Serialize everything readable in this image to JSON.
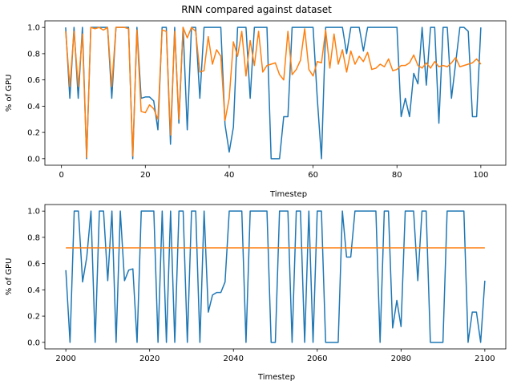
{
  "chart_data": [
    {
      "type": "line",
      "title": "RNN compared against dataset",
      "xlabel": "Timestep",
      "ylabel": "% of GPU",
      "xlim": [
        -3.95,
        105.95
      ],
      "ylim": [
        -0.05,
        1.05
      ],
      "xticks": [
        0,
        20,
        40,
        60,
        80,
        100
      ],
      "yticks": [
        0.0,
        0.2,
        0.4,
        0.6,
        0.8,
        1.0
      ],
      "grid": false,
      "legend": "none",
      "x": [
        1,
        2,
        3,
        4,
        5,
        6,
        7,
        8,
        9,
        10,
        11,
        12,
        13,
        14,
        15,
        16,
        17,
        18,
        19,
        20,
        21,
        22,
        23,
        24,
        25,
        26,
        27,
        28,
        29,
        30,
        31,
        32,
        33,
        34,
        35,
        36,
        37,
        38,
        39,
        40,
        41,
        42,
        43,
        44,
        45,
        46,
        47,
        48,
        49,
        50,
        51,
        52,
        53,
        54,
        55,
        56,
        57,
        58,
        59,
        60,
        61,
        62,
        63,
        64,
        65,
        66,
        67,
        68,
        69,
        70,
        71,
        72,
        73,
        74,
        75,
        76,
        77,
        78,
        79,
        80,
        81,
        82,
        83,
        84,
        85,
        86,
        87,
        88,
        89,
        90,
        91,
        92,
        93,
        94,
        95,
        96,
        97,
        98,
        99,
        100
      ],
      "series": [
        {
          "color": "#1f77b4",
          "values": [
            1.0,
            0.46,
            1.0,
            0.46,
            1.0,
            0.0,
            1.0,
            1.0,
            1.0,
            1.0,
            1.0,
            0.46,
            1.0,
            1.0,
            1.0,
            1.0,
            0.0,
            1.0,
            0.46,
            0.47,
            0.47,
            0.44,
            0.22,
            1.0,
            1.0,
            0.11,
            1.0,
            0.27,
            1.0,
            0.22,
            1.0,
            1.0,
            0.46,
            1.0,
            1.0,
            1.0,
            1.0,
            1.0,
            0.26,
            0.05,
            0.24,
            1.0,
            1.0,
            1.0,
            0.46,
            1.0,
            1.0,
            1.0,
            1.0,
            0.0,
            0.0,
            0.0,
            0.32,
            0.32,
            1.0,
            1.0,
            1.0,
            1.0,
            1.0,
            1.0,
            0.46,
            0.0,
            1.0,
            1.0,
            1.0,
            1.0,
            1.0,
            0.8,
            1.0,
            1.0,
            1.0,
            0.82,
            1.0,
            1.0,
            1.0,
            1.0,
            1.0,
            1.0,
            1.0,
            1.0,
            0.32,
            0.46,
            0.32,
            0.65,
            0.57,
            1.0,
            0.56,
            1.0,
            1.0,
            0.27,
            1.0,
            1.0,
            0.46,
            0.73,
            1.0,
            1.0,
            0.97,
            0.32,
            0.32,
            1.0
          ]
        },
        {
          "color": "#ff7f0e",
          "values": [
            0.97,
            0.55,
            0.97,
            0.55,
            0.95,
            0.01,
            1.0,
            0.99,
            1.0,
            0.98,
            1.0,
            0.55,
            1.0,
            1.0,
            1.0,
            0.99,
            0.02,
            0.98,
            0.36,
            0.35,
            0.41,
            0.38,
            0.3,
            0.98,
            0.97,
            0.18,
            0.97,
            0.3,
            1.0,
            0.92,
            1.0,
            0.97,
            0.66,
            0.67,
            0.93,
            0.72,
            0.83,
            0.78,
            0.29,
            0.46,
            0.89,
            0.78,
            0.97,
            0.63,
            0.9,
            0.71,
            0.97,
            0.66,
            0.71,
            0.72,
            0.73,
            0.64,
            0.6,
            0.97,
            0.64,
            0.68,
            0.75,
            0.99,
            0.68,
            0.63,
            0.74,
            0.73,
            0.98,
            0.69,
            0.95,
            0.72,
            0.83,
            0.66,
            0.82,
            0.72,
            0.78,
            0.74,
            0.81,
            0.68,
            0.69,
            0.72,
            0.7,
            0.76,
            0.67,
            0.68,
            0.71,
            0.71,
            0.73,
            0.79,
            0.71,
            0.69,
            0.73,
            0.69,
            0.74,
            0.7,
            0.71,
            0.7,
            0.73,
            0.77,
            0.7,
            0.71,
            0.72,
            0.73,
            0.76,
            0.72
          ]
        }
      ]
    },
    {
      "type": "line",
      "title": "",
      "xlabel": "Timestep",
      "ylabel": "% of GPU",
      "xlim": [
        1995.0,
        2105.0
      ],
      "ylim": [
        -0.05,
        1.05
      ],
      "xticks": [
        2000,
        2020,
        2040,
        2060,
        2080,
        2100
      ],
      "yticks": [
        0.0,
        0.2,
        0.4,
        0.6,
        0.8,
        1.0
      ],
      "grid": false,
      "legend": "none",
      "x": [
        2000,
        2001,
        2002,
        2003,
        2004,
        2005,
        2006,
        2007,
        2008,
        2009,
        2010,
        2011,
        2012,
        2013,
        2014,
        2015,
        2016,
        2017,
        2018,
        2019,
        2020,
        2021,
        2022,
        2023,
        2024,
        2025,
        2026,
        2027,
        2028,
        2029,
        2030,
        2031,
        2032,
        2033,
        2034,
        2035,
        2036,
        2037,
        2038,
        2039,
        2040,
        2041,
        2042,
        2043,
        2044,
        2045,
        2046,
        2047,
        2048,
        2049,
        2050,
        2051,
        2052,
        2053,
        2054,
        2055,
        2056,
        2057,
        2058,
        2059,
        2060,
        2061,
        2062,
        2063,
        2064,
        2065,
        2066,
        2067,
        2068,
        2069,
        2070,
        2071,
        2072,
        2073,
        2074,
        2075,
        2076,
        2077,
        2078,
        2079,
        2080,
        2081,
        2082,
        2083,
        2084,
        2085,
        2086,
        2087,
        2088,
        2089,
        2090,
        2091,
        2092,
        2093,
        2094,
        2095,
        2096,
        2097,
        2098,
        2099,
        2100
      ],
      "series": [
        {
          "color": "#1f77b4",
          "values": [
            0.55,
            0.0,
            1.0,
            1.0,
            0.46,
            0.65,
            1.0,
            0.0,
            1.0,
            1.0,
            0.47,
            1.0,
            0.0,
            1.0,
            0.47,
            0.55,
            0.56,
            0.0,
            1.0,
            1.0,
            1.0,
            1.0,
            0.0,
            1.0,
            0.0,
            1.0,
            0.0,
            1.0,
            1.0,
            0.0,
            1.0,
            1.0,
            0.0,
            1.0,
            0.23,
            0.36,
            0.38,
            0.38,
            0.46,
            1.0,
            1.0,
            1.0,
            1.0,
            0.0,
            1.0,
            1.0,
            1.0,
            1.0,
            1.0,
            0.0,
            0.0,
            1.0,
            1.0,
            1.0,
            0.0,
            1.0,
            1.0,
            0.0,
            1.0,
            0.0,
            1.0,
            1.0,
            0.0,
            0.0,
            0.0,
            0.0,
            1.0,
            0.65,
            0.65,
            1.0,
            1.0,
            1.0,
            1.0,
            1.0,
            1.0,
            0.0,
            1.0,
            1.0,
            0.11,
            0.32,
            0.12,
            1.0,
            1.0,
            1.0,
            0.47,
            1.0,
            1.0,
            0.0,
            0.0,
            0.0,
            0.0,
            1.0,
            1.0,
            1.0,
            1.0,
            1.0,
            0.0,
            0.23,
            0.23,
            0.0,
            0.47
          ]
        },
        {
          "color": "#ff7f0e",
          "values": [
            0.72,
            0.72,
            0.72,
            0.72,
            0.72,
            0.72,
            0.72,
            0.72,
            0.72,
            0.72,
            0.72,
            0.72,
            0.72,
            0.72,
            0.72,
            0.72,
            0.72,
            0.72,
            0.72,
            0.72,
            0.72,
            0.72,
            0.72,
            0.72,
            0.72,
            0.72,
            0.72,
            0.72,
            0.72,
            0.72,
            0.72,
            0.72,
            0.72,
            0.72,
            0.72,
            0.72,
            0.72,
            0.72,
            0.72,
            0.72,
            0.72,
            0.72,
            0.72,
            0.72,
            0.72,
            0.72,
            0.72,
            0.72,
            0.72,
            0.72,
            0.72,
            0.72,
            0.72,
            0.72,
            0.72,
            0.72,
            0.72,
            0.72,
            0.72,
            0.72,
            0.72,
            0.72,
            0.72,
            0.72,
            0.72,
            0.72,
            0.72,
            0.72,
            0.72,
            0.72,
            0.72,
            0.72,
            0.72,
            0.72,
            0.72,
            0.72,
            0.72,
            0.72,
            0.72,
            0.72,
            0.72,
            0.72,
            0.72,
            0.72,
            0.72,
            0.72,
            0.72,
            0.72,
            0.72,
            0.72,
            0.72,
            0.72,
            0.72,
            0.72,
            0.72,
            0.72,
            0.72,
            0.72,
            0.72,
            0.72,
            0.72
          ]
        }
      ]
    }
  ]
}
